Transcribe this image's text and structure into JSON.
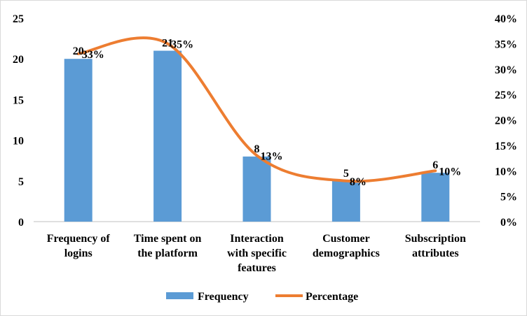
{
  "chart_data": {
    "type": "bar",
    "categories": [
      [
        "Frequency of",
        "logins"
      ],
      [
        "Time spent on",
        "the platform"
      ],
      [
        "Interaction",
        "with specific",
        "features"
      ],
      [
        "Customer",
        "demographics"
      ],
      [
        "Subscription",
        "attributes"
      ]
    ],
    "series": [
      {
        "name": "Frequency",
        "type": "bar",
        "axis": "left",
        "values": [
          20,
          21,
          8,
          5,
          6
        ],
        "labels": [
          "20",
          "21",
          "8",
          "5",
          "6"
        ],
        "color": "#5b9bd5"
      },
      {
        "name": "Percentage",
        "type": "line",
        "smooth": true,
        "axis": "right",
        "values": [
          33,
          35,
          13,
          8,
          10
        ],
        "labels": [
          "33%",
          "35%",
          "13%",
          "8%",
          "10%"
        ],
        "color": "#ed7d31"
      }
    ],
    "y_left": {
      "min": 0,
      "max": 25,
      "ticks": [
        "0",
        "5",
        "10",
        "15",
        "20",
        "25"
      ]
    },
    "y_right": {
      "min": 0,
      "max": 40,
      "ticks": [
        "0%",
        "5%",
        "10%",
        "15%",
        "20%",
        "25%",
        "30%",
        "35%",
        "40%"
      ]
    },
    "grid": false,
    "legend": "bottom-center",
    "title": "",
    "xlabel": "",
    "ylabel": ""
  }
}
